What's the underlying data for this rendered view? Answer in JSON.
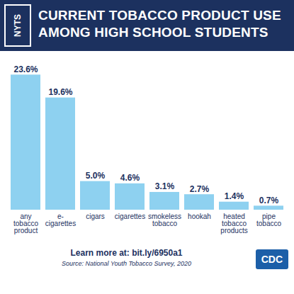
{
  "chart_data": {
    "type": "bar",
    "title": "CURRENT TOBACCO PRODUCT USE AMONG HIGH SCHOOL STUDENTS",
    "categories": [
      "any tobacco product",
      "e-cigarettes",
      "cigars",
      "cigarettes",
      "smokeless tobacco",
      "hookah",
      "heated tobacco products",
      "pipe tobacco"
    ],
    "values": [
      23.6,
      19.6,
      5.0,
      4.6,
      3.1,
      2.7,
      1.4,
      0.7
    ],
    "value_labels": [
      "23.6%",
      "19.6%",
      "5.0%",
      "4.6%",
      "3.1%",
      "2.7%",
      "1.4%",
      "0.7%"
    ],
    "color": "#8ed1f0",
    "ylim": [
      0,
      25
    ],
    "data_labels": true,
    "tick_labels": "x",
    "grid": false,
    "annotations": [
      "NYTS",
      "Learn more at: bit.ly/6950a1",
      "Source: National Youth Tobacco Survey, 2020",
      "CDC"
    ]
  }
}
